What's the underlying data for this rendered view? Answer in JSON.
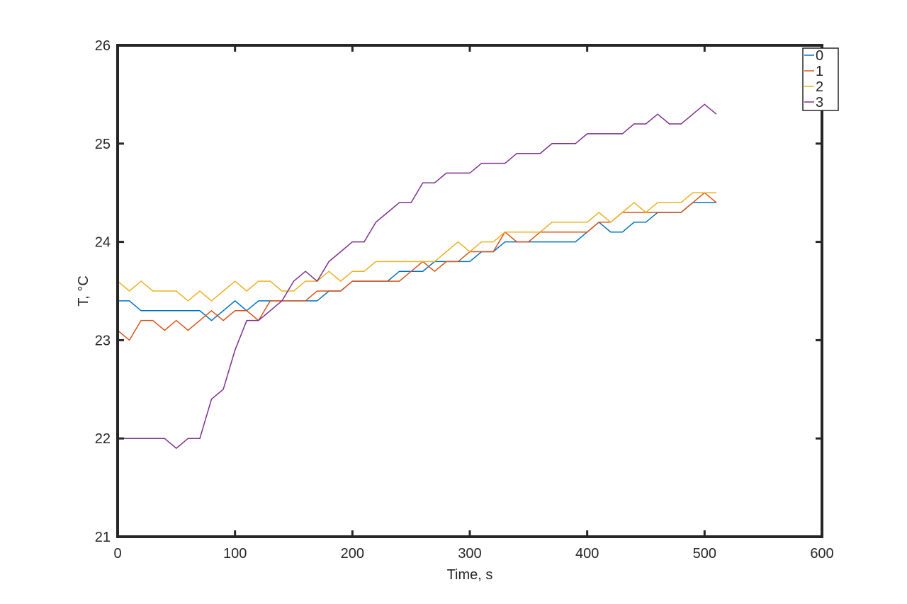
{
  "chart_data": {
    "type": "line",
    "title": "",
    "xlabel": "Time, s",
    "ylabel": "T, °C",
    "xlim": [
      0,
      600
    ],
    "ylim": [
      21,
      26
    ],
    "xticks": [
      0,
      100,
      200,
      300,
      400,
      500,
      600
    ],
    "yticks": [
      21,
      22,
      23,
      24,
      25,
      26
    ],
    "grid": false,
    "legend_position": "top-right",
    "x": [
      0,
      10,
      20,
      30,
      40,
      50,
      60,
      70,
      80,
      90,
      100,
      110,
      120,
      130,
      140,
      150,
      160,
      170,
      180,
      190,
      200,
      210,
      220,
      230,
      240,
      250,
      260,
      270,
      280,
      290,
      300,
      310,
      320,
      330,
      340,
      350,
      360,
      370,
      380,
      390,
      400,
      410,
      420,
      430,
      440,
      450,
      460,
      470,
      480,
      490,
      500,
      510
    ],
    "series": [
      {
        "name": "0",
        "color": "#0072BD",
        "values": [
          23.4,
          23.4,
          23.3,
          23.3,
          23.3,
          23.3,
          23.3,
          23.3,
          23.2,
          23.3,
          23.4,
          23.3,
          23.4,
          23.4,
          23.4,
          23.4,
          23.4,
          23.4,
          23.5,
          23.5,
          23.6,
          23.6,
          23.6,
          23.6,
          23.7,
          23.7,
          23.7,
          23.8,
          23.8,
          23.8,
          23.8,
          23.9,
          23.9,
          24.0,
          24.0,
          24.0,
          24.0,
          24.0,
          24.0,
          24.0,
          24.1,
          24.2,
          24.1,
          24.1,
          24.2,
          24.2,
          24.3,
          24.3,
          24.3,
          24.4,
          24.4,
          24.4
        ]
      },
      {
        "name": "1",
        "color": "#D95319",
        "values": [
          23.1,
          23.0,
          23.2,
          23.2,
          23.1,
          23.2,
          23.1,
          23.2,
          23.3,
          23.2,
          23.3,
          23.3,
          23.2,
          23.4,
          23.4,
          23.4,
          23.4,
          23.5,
          23.5,
          23.5,
          23.6,
          23.6,
          23.6,
          23.6,
          23.6,
          23.7,
          23.8,
          23.7,
          23.8,
          23.8,
          23.9,
          23.9,
          23.9,
          24.1,
          24.0,
          24.0,
          24.1,
          24.1,
          24.1,
          24.1,
          24.1,
          24.2,
          24.2,
          24.3,
          24.3,
          24.3,
          24.3,
          24.3,
          24.3,
          24.4,
          24.5,
          24.4
        ]
      },
      {
        "name": "2",
        "color": "#EDB120",
        "values": [
          23.6,
          23.5,
          23.6,
          23.5,
          23.5,
          23.5,
          23.4,
          23.5,
          23.4,
          23.5,
          23.6,
          23.5,
          23.6,
          23.6,
          23.5,
          23.5,
          23.6,
          23.6,
          23.7,
          23.6,
          23.7,
          23.7,
          23.8,
          23.8,
          23.8,
          23.8,
          23.8,
          23.8,
          23.9,
          24.0,
          23.9,
          24.0,
          24.0,
          24.1,
          24.1,
          24.1,
          24.1,
          24.2,
          24.2,
          24.2,
          24.2,
          24.3,
          24.2,
          24.3,
          24.4,
          24.3,
          24.4,
          24.4,
          24.4,
          24.5,
          24.5,
          24.5
        ]
      },
      {
        "name": "3",
        "color": "#7E2F8E",
        "values": [
          22.0,
          22.0,
          22.0,
          22.0,
          22.0,
          21.9,
          22.0,
          22.0,
          22.4,
          22.5,
          22.9,
          23.2,
          23.2,
          23.3,
          23.4,
          23.6,
          23.7,
          23.6,
          23.8,
          23.9,
          24.0,
          24.0,
          24.2,
          24.3,
          24.4,
          24.4,
          24.6,
          24.6,
          24.7,
          24.7,
          24.7,
          24.8,
          24.8,
          24.8,
          24.9,
          24.9,
          24.9,
          25.0,
          25.0,
          25.0,
          25.1,
          25.1,
          25.1,
          25.1,
          25.2,
          25.2,
          25.3,
          25.2,
          25.2,
          25.3,
          25.4,
          25.3
        ]
      }
    ]
  }
}
